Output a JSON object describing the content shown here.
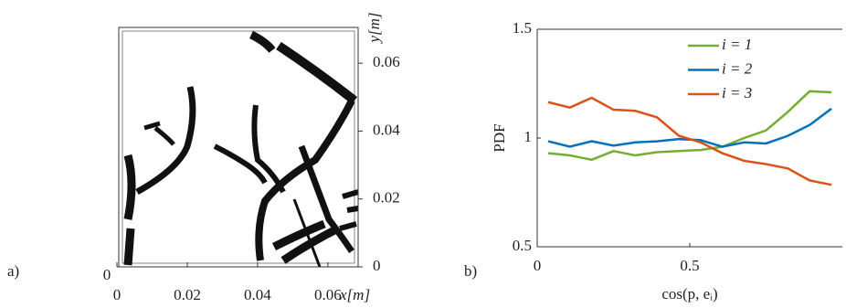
{
  "chart_data": [
    {
      "type": "image",
      "panel_label": "a)",
      "xlabel": "x[m]",
      "ylabel": "y[m]",
      "xlim": [
        0,
        0.0686
      ],
      "xticks": [
        0,
        0.02,
        0.04,
        0.06
      ],
      "ylim": [
        0,
        0.07
      ],
      "yticks": [
        0,
        0.02,
        0.04,
        0.06
      ],
      "zticks": [
        0
      ]
    },
    {
      "type": "line",
      "panel_label": "b)",
      "xlabel": "cos(p, eᵢ)",
      "ylabel": "PDF",
      "xlim": [
        0,
        1
      ],
      "xticks": [
        0,
        0.5
      ],
      "ylim": [
        0.5,
        1.5
      ],
      "yticks": [
        0.5,
        1,
        1.5
      ],
      "x": [
        0.0357,
        0.1071,
        0.1786,
        0.25,
        0.3214,
        0.3929,
        0.4643,
        0.5357,
        0.6071,
        0.6786,
        0.75,
        0.8214,
        0.8929,
        0.9643
      ],
      "series": [
        {
          "name": "i = 1",
          "color": "#77ac30",
          "values": [
            0.93,
            0.92,
            0.9,
            0.94,
            0.92,
            0.935,
            0.94,
            0.945,
            0.96,
            1.0,
            1.035,
            1.12,
            1.215,
            1.21
          ]
        },
        {
          "name": "i = 2",
          "color": "#0072bd",
          "values": [
            0.985,
            0.96,
            0.985,
            0.965,
            0.98,
            0.985,
            0.995,
            0.99,
            0.96,
            0.98,
            0.975,
            1.01,
            1.06,
            1.135
          ]
        },
        {
          "name": "i = 3",
          "color": "#d95319",
          "values": [
            1.165,
            1.14,
            1.185,
            1.13,
            1.125,
            1.095,
            1.01,
            0.98,
            0.93,
            0.895,
            0.88,
            0.86,
            0.805,
            0.785
          ]
        }
      ]
    }
  ]
}
